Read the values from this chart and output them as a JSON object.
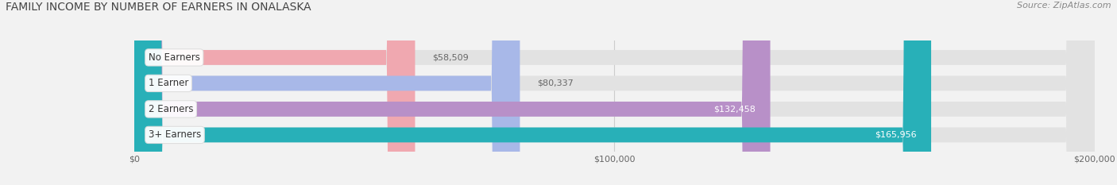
{
  "title": "FAMILY INCOME BY NUMBER OF EARNERS IN ONALASKA",
  "source": "Source: ZipAtlas.com",
  "categories": [
    "No Earners",
    "1 Earner",
    "2 Earners",
    "3+ Earners"
  ],
  "values": [
    58509,
    80337,
    132458,
    165956
  ],
  "bar_colors": [
    "#f0a8b0",
    "#a8b8e8",
    "#b890c8",
    "#28b0b8"
  ],
  "value_colors": [
    "#666666",
    "#666666",
    "#ffffff",
    "#ffffff"
  ],
  "value_inside": [
    false,
    false,
    true,
    true
  ],
  "xlim": [
    0,
    200000
  ],
  "xticks": [
    0,
    100000,
    200000
  ],
  "xtick_labels": [
    "$0",
    "$100,000",
    "$200,000"
  ],
  "background_color": "#f2f2f2",
  "bar_bg_color": "#e2e2e2",
  "title_fontsize": 10,
  "source_fontsize": 8,
  "bar_height": 0.58,
  "figsize": [
    14.06,
    2.33
  ]
}
